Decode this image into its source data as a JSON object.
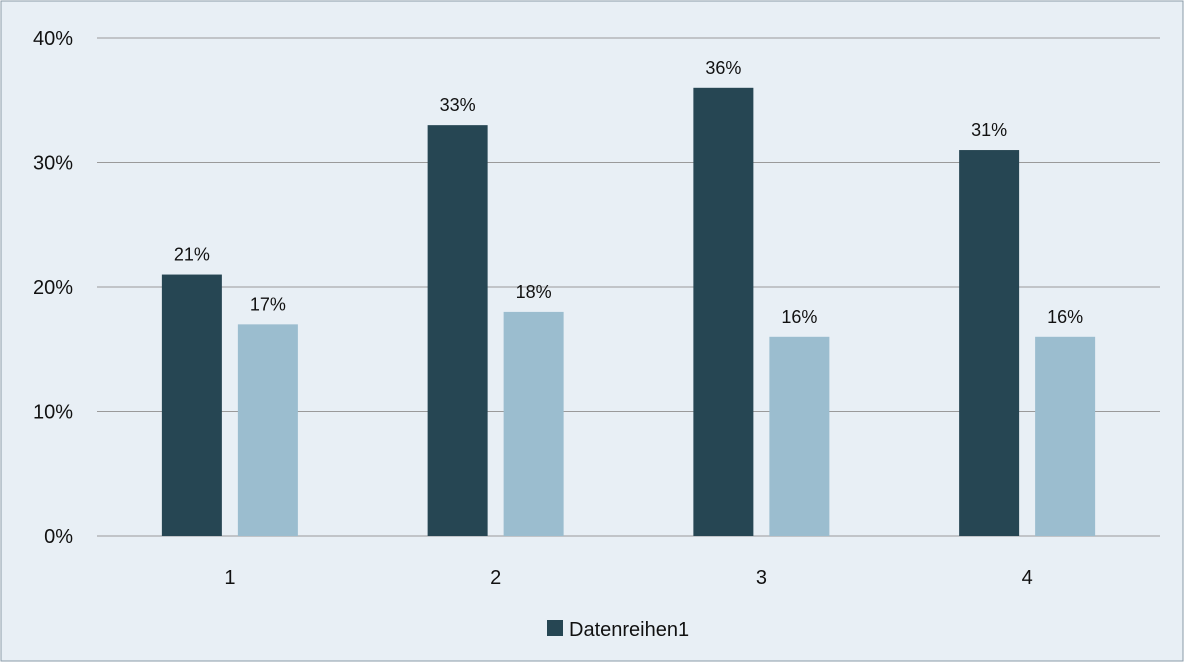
{
  "chart_data": {
    "type": "bar",
    "categories": [
      "1",
      "2",
      "3",
      "4"
    ],
    "series": [
      {
        "values": [
          21,
          33,
          36,
          31
        ],
        "labels": [
          "21%",
          "33%",
          "36%",
          "31%"
        ],
        "color": "#264653"
      },
      {
        "values": [
          17,
          18,
          16,
          16
        ],
        "labels": [
          "17%",
          "18%",
          "16%",
          "16%"
        ],
        "color": "#9BBDCF"
      }
    ],
    "yticks": [
      "0%",
      "10%",
      "20%",
      "30%",
      "40%"
    ],
    "ylim": [
      0,
      40
    ],
    "grid": true,
    "legend": {
      "position": "bottom",
      "entries": [
        {
          "label": "Datenreihen1",
          "color": "#264653"
        }
      ]
    },
    "background": "#E8EFF5",
    "border_color": "#8A9BA8",
    "grid_color": "#9A9A9A"
  }
}
